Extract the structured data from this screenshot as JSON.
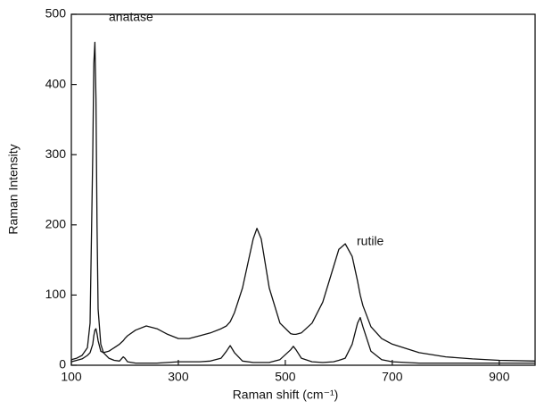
{
  "chart_data": {
    "type": "line",
    "xlabel": "Raman shift (cm⁻¹)",
    "ylabel": "Raman Intensity",
    "annotations": [
      "anatase",
      "rutile"
    ],
    "x": [
      100,
      110,
      120,
      130,
      135,
      140,
      142,
      144,
      146,
      148,
      150,
      155,
      160,
      170,
      180,
      190,
      197,
      200,
      205,
      220,
      240,
      260,
      280,
      300,
      320,
      340,
      360,
      380,
      390,
      397,
      405,
      420,
      440,
      447,
      455,
      470,
      490,
      510,
      515,
      520,
      530,
      550,
      570,
      590,
      600,
      612,
      625,
      635,
      640,
      645,
      660,
      680,
      700,
      750,
      800,
      850,
      900,
      967
    ],
    "series": [
      {
        "name": "anatase",
        "color": "#111111",
        "values": [
          8,
          10,
          14,
          25,
          60,
          300,
          430,
          460,
          380,
          200,
          80,
          30,
          18,
          10,
          7,
          6,
          12,
          10,
          5,
          3,
          3,
          3,
          4,
          5,
          5,
          5,
          6,
          10,
          20,
          28,
          18,
          6,
          4,
          4,
          4,
          4,
          8,
          22,
          27,
          22,
          10,
          5,
          4,
          5,
          7,
          10,
          30,
          60,
          68,
          55,
          20,
          8,
          5,
          3,
          3,
          3,
          3,
          3
        ]
      },
      {
        "name": "rutile",
        "color": "#111111",
        "values": [
          5,
          7,
          9,
          14,
          18,
          30,
          42,
          50,
          52,
          45,
          35,
          20,
          18,
          20,
          25,
          30,
          35,
          38,
          42,
          50,
          56,
          52,
          44,
          38,
          38,
          42,
          46,
          52,
          56,
          62,
          75,
          110,
          180,
          195,
          180,
          110,
          60,
          45,
          44,
          44,
          46,
          60,
          90,
          140,
          165,
          173,
          155,
          120,
          100,
          85,
          55,
          38,
          30,
          18,
          12,
          9,
          7,
          6
        ]
      }
    ],
    "xlim": [
      100,
      967
    ],
    "ylim": [
      0,
      500
    ],
    "xticks": [
      100,
      300,
      500,
      700,
      900
    ],
    "yticks": [
      0,
      100,
      200,
      300,
      400,
      500
    ]
  }
}
